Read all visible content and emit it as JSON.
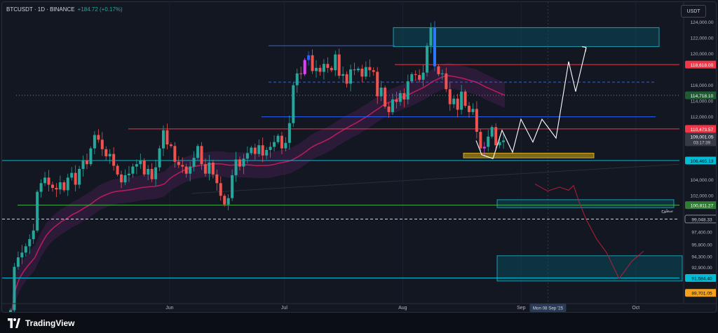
{
  "header": {
    "symbol": "BTCUSDT · 1D · BINANCE",
    "change": "+184.72 (+0.17%)",
    "currency": "USDT"
  },
  "footer": {
    "brand": "TradingView"
  },
  "colors": {
    "background": "#131722",
    "up": "#26a69a",
    "down": "#ef5350",
    "red_line": "#f23645",
    "blue_line": "#2962ff",
    "cyan_line": "#00bcd4",
    "green_line": "#4caf50",
    "ma_line": "#b71c5c",
    "box_fill": "#0b4a5a",
    "orange_box": "#a0841a"
  },
  "chart_data": {
    "type": "candlestick",
    "symbol": "BTCUSDT",
    "interval": "1D",
    "exchange": "BINANCE",
    "last_price": "109,001.05",
    "countdown": "03:17:39",
    "ylim": [
      88700,
      126000
    ],
    "y_ticks": [
      "124,000.00",
      "122,000.00",
      "120,000.00",
      "116,000.00",
      "114,000.00",
      "112,000.00",
      "104,000.00",
      "102,000.00",
      "97,400.00",
      "95,800.00",
      "94,300.00",
      "92,900.00"
    ],
    "x_labels": [
      {
        "label": "Jun",
        "date": "2025-06-01"
      },
      {
        "label": "Jul",
        "date": "2025-07-01"
      },
      {
        "label": "Aug",
        "date": "2025-08-01"
      },
      {
        "label": "Sep",
        "date": "2025-09-01"
      },
      {
        "label": "Oct",
        "date": "2025-10-01"
      }
    ],
    "crosshair_date_label": "Mon 08 Sep '25",
    "series_start_date": "2025-04-20",
    "closes": [
      87500,
      93000,
      94200,
      94800,
      95600,
      96500,
      97600,
      102500,
      103600,
      104300,
      103400,
      103000,
      102800,
      103700,
      102700,
      104300,
      104900,
      103400,
      105400,
      106500,
      106000,
      108000,
      109700,
      109100,
      107900,
      107000,
      107300,
      105800,
      104700,
      103700,
      104600,
      104800,
      105700,
      106000,
      106500,
      104700,
      105400,
      104100,
      105600,
      108000,
      110300,
      108500,
      108300,
      106300,
      105900,
      105700,
      104800,
      105700,
      106800,
      108300,
      106000,
      104800,
      106200,
      104700,
      103600,
      102000,
      100900,
      101700,
      104600,
      106600,
      105700,
      106700,
      107400,
      108100,
      107300,
      108400,
      107100,
      107800,
      108200,
      108800,
      109600,
      108000,
      108700,
      111200,
      116000,
      117500,
      117400,
      119200,
      119800,
      117800,
      118200,
      117700,
      118700,
      118200,
      117900,
      119900,
      117200,
      117400,
      116200,
      118000,
      117900,
      118100,
      117100,
      118300,
      117900,
      117700,
      114600,
      115700,
      113300,
      112600,
      114200,
      113900,
      115000,
      114200,
      116500,
      117400,
      117300,
      116700,
      117600,
      121000,
      123300,
      118400,
      117400,
      117500,
      115500,
      113600,
      114300,
      112900,
      115200,
      113400,
      112600,
      113000,
      110100,
      108000,
      108200,
      109500,
      110700,
      108400,
      108800,
      109001
    ],
    "horizontal_levels": [
      {
        "value": 118618.0,
        "label": "118,618.00",
        "style": "red"
      },
      {
        "value": 114718.1,
        "label": "114,718.10",
        "style": "green-dotted"
      },
      {
        "value": 110473.57,
        "label": "110,473.57",
        "style": "red"
      },
      {
        "value": 106465.13,
        "label": "106,465.13",
        "style": "cyan"
      },
      {
        "value": 100811.27,
        "label": "100,811.27",
        "style": "green"
      },
      {
        "value": 99048.33,
        "label": "99,048.33",
        "style": "white-dashed"
      },
      {
        "value": 91584.4,
        "label": "91,584.40",
        "style": "cyan"
      },
      {
        "value": 89701.05,
        "label": "89,701.05",
        "style": "orange"
      }
    ],
    "annotation_text": "سطوح",
    "zones": [
      {
        "name": "upper-supply-zone",
        "top": 123300,
        "bottom": 120900
      },
      {
        "name": "mid-demand-zone",
        "top": 101500,
        "bottom": 100500
      },
      {
        "name": "lower-demand-zone",
        "top": 94400,
        "bottom": 91200
      },
      {
        "name": "orange-zone",
        "top": 107400,
        "bottom": 106800
      }
    ],
    "projection_bullish": [
      109000,
      107200,
      106700,
      110300,
      107500,
      111700,
      108800,
      111700,
      109300,
      119000,
      115200,
      120800
    ],
    "projection_bearish": [
      103500,
      102600,
      103100,
      102700,
      103300,
      101200,
      99000,
      96500,
      94800,
      91500,
      93700,
      95000
    ]
  }
}
